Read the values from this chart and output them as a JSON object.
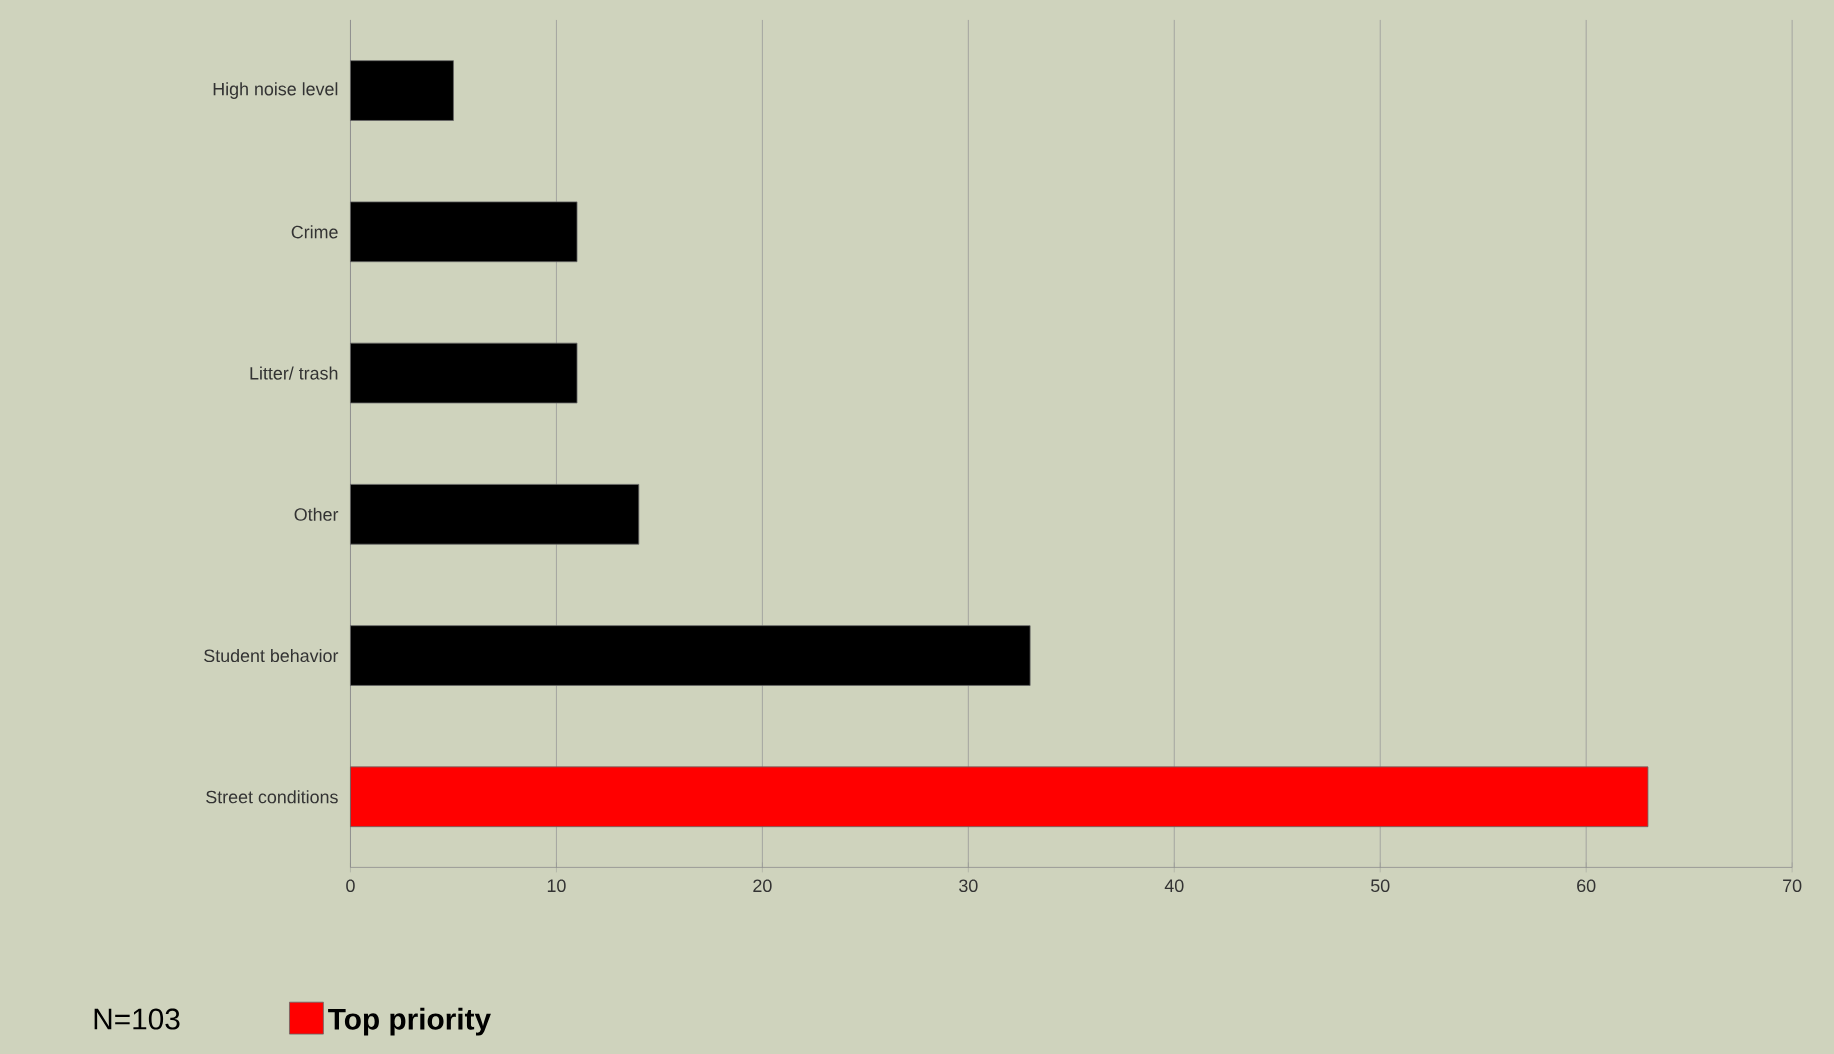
{
  "chart_data": {
    "type": "bar",
    "orientation": "horizontal",
    "categories": [
      "High noise level",
      "Crime",
      "Litter/ trash",
      "Other",
      "Student behavior",
      "Street conditions"
    ],
    "series": [
      {
        "color": "#000000",
        "values": [
          5,
          11,
          11,
          14,
          33,
          null
        ]
      },
      {
        "name": "Top priority",
        "color": "#ff0000",
        "values": [
          null,
          null,
          null,
          null,
          null,
          63
        ]
      }
    ],
    "xlim": [
      0,
      70
    ],
    "xticks": [
      0,
      10,
      20,
      30,
      40,
      50,
      60,
      70
    ],
    "grid": "x",
    "legend": "bottom left",
    "annotations": [
      "N=103"
    ]
  }
}
